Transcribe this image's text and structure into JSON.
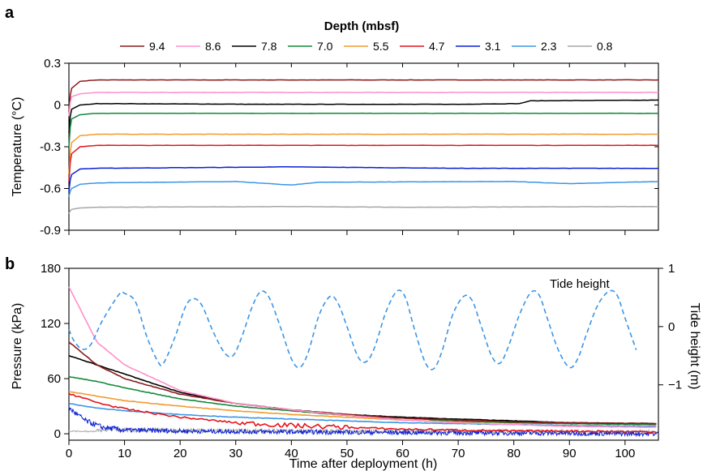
{
  "panels": {
    "a": "a",
    "b": "b"
  },
  "legend": {
    "title": "Depth (mbsf)"
  },
  "colors": {
    "9.4": "#8b1a1a",
    "8.6": "#ff8fc8",
    "7.8": "#000000",
    "7.0": "#13883a",
    "5.5": "#f39a2e",
    "4.7": "#e3141b",
    "3.1": "#0a1fd6",
    "2.3": "#3b95e6",
    "0.8": "#a7a7a7",
    "tide": "#3b95e6"
  },
  "chart_data": [
    {
      "type": "line",
      "panel": "a",
      "title": "",
      "xlabel": "",
      "ylabel": "Temperature (°C)",
      "xlim": [
        0,
        106
      ],
      "ylim": [
        -0.9,
        0.3
      ],
      "y_ticks": [
        "0.3",
        "0",
        "-0.3",
        "-0.6",
        "-0.9"
      ],
      "y_tick_values": [
        0.3,
        0,
        -0.3,
        -0.6,
        -0.9
      ],
      "x_ticks": [
        0,
        10,
        20,
        30,
        40,
        50,
        60,
        70,
        80,
        90,
        100
      ],
      "legend_position": "top",
      "series": [
        {
          "name": "9.4",
          "points": [
            [
              0,
              -0.05
            ],
            [
              0.5,
              0.12
            ],
            [
              2,
              0.17
            ],
            [
              5,
              0.18
            ],
            [
              106,
              0.18
            ]
          ]
        },
        {
          "name": "8.6",
          "points": [
            [
              0,
              -0.08
            ],
            [
              0.5,
              0.06
            ],
            [
              2,
              0.08
            ],
            [
              5,
              0.09
            ],
            [
              106,
              0.09
            ]
          ]
        },
        {
          "name": "7.8",
          "points": [
            [
              0,
              -0.2
            ],
            [
              0.5,
              -0.03
            ],
            [
              2,
              0.0
            ],
            [
              5,
              0.01
            ],
            [
              35,
              0.005
            ],
            [
              70,
              0.005
            ],
            [
              81,
              0.01
            ],
            [
              83,
              0.03
            ],
            [
              106,
              0.035
            ]
          ]
        },
        {
          "name": "7.0",
          "points": [
            [
              0,
              -0.3
            ],
            [
              0.5,
              -0.1
            ],
            [
              2,
              -0.07
            ],
            [
              5,
              -0.06
            ],
            [
              106,
              -0.06
            ]
          ]
        },
        {
          "name": "5.5",
          "points": [
            [
              0,
              -0.5
            ],
            [
              0.5,
              -0.27
            ],
            [
              2,
              -0.22
            ],
            [
              5,
              -0.21
            ],
            [
              106,
              -0.21
            ]
          ]
        },
        {
          "name": "4.7",
          "points": [
            [
              0,
              -0.55
            ],
            [
              0.5,
              -0.35
            ],
            [
              2,
              -0.3
            ],
            [
              5,
              -0.29
            ],
            [
              106,
              -0.29
            ]
          ]
        },
        {
          "name": "3.1",
          "points": [
            [
              0,
              -0.62
            ],
            [
              0.5,
              -0.5
            ],
            [
              2,
              -0.46
            ],
            [
              5,
              -0.455
            ],
            [
              40,
              -0.445
            ],
            [
              70,
              -0.455
            ],
            [
              106,
              -0.455
            ]
          ]
        },
        {
          "name": "2.3",
          "points": [
            [
              0,
              -0.66
            ],
            [
              0.5,
              -0.6
            ],
            [
              2,
              -0.57
            ],
            [
              5,
              -0.56
            ],
            [
              30,
              -0.55
            ],
            [
              40,
              -0.575
            ],
            [
              45,
              -0.555
            ],
            [
              80,
              -0.55
            ],
            [
              90,
              -0.565
            ],
            [
              106,
              -0.55
            ]
          ]
        },
        {
          "name": "0.8",
          "points": [
            [
              0,
              -0.78
            ],
            [
              0.5,
              -0.75
            ],
            [
              2,
              -0.74
            ],
            [
              5,
              -0.735
            ],
            [
              40,
              -0.73
            ],
            [
              60,
              -0.735
            ],
            [
              106,
              -0.73
            ]
          ]
        }
      ]
    },
    {
      "type": "line",
      "panel": "b",
      "title": "",
      "xlabel": "Time after deployment (h)",
      "ylabel": "Pressure (kPa)",
      "y2label": "Tide height (m)",
      "xlim": [
        0,
        106
      ],
      "ylim": [
        -7,
        180
      ],
      "y_ticks": [
        "180",
        "120",
        "60",
        "0"
      ],
      "y_tick_values": [
        180,
        120,
        60,
        0
      ],
      "y2lim": [
        -1.95,
        1.0
      ],
      "y2_ticks": [
        "1",
        "0",
        "−1"
      ],
      "y2_tick_values": [
        1,
        0,
        -1
      ],
      "x_ticks": [
        "0",
        "10",
        "20",
        "30",
        "40",
        "50",
        "60",
        "70",
        "80",
        "90",
        "100"
      ],
      "x_tick_values": [
        0,
        10,
        20,
        30,
        40,
        50,
        60,
        70,
        80,
        90,
        100
      ],
      "annotation": "Tide height",
      "series": [
        {
          "name": "8.6",
          "points": [
            [
              0,
              160
            ],
            [
              5,
              100
            ],
            [
              10,
              75
            ],
            [
              20,
              47
            ],
            [
              30,
              33
            ],
            [
              40,
              26
            ],
            [
              50,
              20
            ],
            [
              60,
              15
            ],
            [
              70,
              12
            ],
            [
              80,
              10
            ],
            [
              90,
              8
            ],
            [
              106,
              7
            ]
          ]
        },
        {
          "name": "9.4",
          "points": [
            [
              0,
              100
            ],
            [
              5,
              75
            ],
            [
              10,
              60
            ],
            [
              20,
              43
            ],
            [
              30,
              33
            ],
            [
              40,
              26
            ],
            [
              50,
              21
            ],
            [
              60,
              17
            ],
            [
              70,
              15
            ],
            [
              80,
              13
            ],
            [
              90,
              12
            ],
            [
              106,
              11
            ]
          ]
        },
        {
          "name": "7.8",
          "points": [
            [
              0,
              85
            ],
            [
              5,
              75
            ],
            [
              10,
              65
            ],
            [
              20,
              45
            ],
            [
              30,
              33
            ],
            [
              40,
              26
            ],
            [
              50,
              21
            ],
            [
              60,
              18
            ],
            [
              70,
              16
            ],
            [
              80,
              14
            ],
            [
              90,
              12
            ],
            [
              106,
              11
            ]
          ]
        },
        {
          "name": "7.0",
          "points": [
            [
              0,
              62
            ],
            [
              5,
              57
            ],
            [
              10,
              50
            ],
            [
              20,
              38
            ],
            [
              30,
              30
            ],
            [
              40,
              25
            ],
            [
              50,
              20
            ],
            [
              60,
              17
            ],
            [
              70,
              14
            ],
            [
              80,
              12
            ],
            [
              90,
              11
            ],
            [
              106,
              10
            ]
          ]
        },
        {
          "name": "5.5",
          "points": [
            [
              0,
              46
            ],
            [
              5,
              41
            ],
            [
              10,
              36
            ],
            [
              20,
              30
            ],
            [
              30,
              25
            ],
            [
              40,
              21
            ],
            [
              50,
              18
            ],
            [
              60,
              15
            ],
            [
              70,
              13
            ],
            [
              80,
              12
            ],
            [
              90,
              11
            ],
            [
              106,
              10
            ]
          ]
        },
        {
          "name": "4.7",
          "points": [
            [
              0,
              44
            ],
            [
              5,
              34
            ],
            [
              10,
              27
            ],
            [
              20,
              18
            ],
            [
              30,
              12
            ],
            [
              40,
              9
            ],
            [
              50,
              7
            ],
            [
              60,
              5
            ],
            [
              70,
              4
            ],
            [
              80,
              3
            ],
            [
              90,
              3
            ],
            [
              106,
              2
            ]
          ]
        },
        {
          "name": "2.3",
          "points": [
            [
              0,
              33
            ],
            [
              5,
              28
            ],
            [
              10,
              25
            ],
            [
              20,
              21
            ],
            [
              30,
              18
            ],
            [
              40,
              16
            ],
            [
              50,
              14
            ],
            [
              60,
              12
            ],
            [
              70,
              11
            ],
            [
              80,
              10
            ],
            [
              90,
              9
            ],
            [
              106,
              8
            ]
          ]
        },
        {
          "name": "3.1",
          "points": [
            [
              0,
              28
            ],
            [
              3,
              14
            ],
            [
              6,
              7
            ],
            [
              10,
              4
            ],
            [
              20,
              3
            ],
            [
              40,
              2
            ],
            [
              70,
              1
            ],
            [
              106,
              0
            ]
          ]
        },
        {
          "name": "0.8",
          "points": [
            [
              0,
              3
            ],
            [
              20,
              2
            ],
            [
              40,
              1
            ],
            [
              70,
              1
            ],
            [
              106,
              0
            ]
          ]
        },
        {
          "name": "Tide height",
          "axis": "right",
          "style": "dashed",
          "points": [
            [
              0,
              -0.05
            ],
            [
              1,
              -0.26
            ],
            [
              2.5,
              -0.39
            ],
            [
              4,
              -0.3
            ],
            [
              6,
              0.1
            ],
            [
              9,
              0.55
            ],
            [
              10,
              0.57
            ],
            [
              12,
              0.42
            ],
            [
              14,
              -0.17
            ],
            [
              16,
              -0.6
            ],
            [
              17,
              -0.63
            ],
            [
              19,
              -0.2
            ],
            [
              21,
              0.35
            ],
            [
              22.5,
              0.48
            ],
            [
              24,
              0.35
            ],
            [
              26,
              -0.1
            ],
            [
              28,
              -0.45
            ],
            [
              29.5,
              -0.5
            ],
            [
              31,
              -0.2
            ],
            [
              33,
              0.35
            ],
            [
              34.5,
              0.6
            ],
            [
              36,
              0.5
            ],
            [
              38,
              0.0
            ],
            [
              40,
              -0.55
            ],
            [
              41.5,
              -0.7
            ],
            [
              43,
              -0.45
            ],
            [
              45,
              0.2
            ],
            [
              47,
              0.52
            ],
            [
              48.5,
              0.38
            ],
            [
              50,
              0.0
            ],
            [
              52,
              -0.52
            ],
            [
              53.5,
              -0.6
            ],
            [
              55,
              -0.35
            ],
            [
              57,
              0.25
            ],
            [
              59,
              0.61
            ],
            [
              60.5,
              0.5
            ],
            [
              62,
              0.0
            ],
            [
              64,
              -0.6
            ],
            [
              65.5,
              -0.73
            ],
            [
              67,
              -0.45
            ],
            [
              69,
              0.2
            ],
            [
              71,
              0.52
            ],
            [
              72.5,
              0.45
            ],
            [
              74,
              0.05
            ],
            [
              76,
              -0.5
            ],
            [
              77.5,
              -0.63
            ],
            [
              79,
              -0.35
            ],
            [
              81,
              0.2
            ],
            [
              83,
              0.58
            ],
            [
              84.5,
              0.55
            ],
            [
              86,
              0.15
            ],
            [
              88,
              -0.4
            ],
            [
              90,
              -0.7
            ],
            [
              91.5,
              -0.55
            ],
            [
              93,
              -0.15
            ],
            [
              95,
              0.35
            ],
            [
              97,
              0.6
            ],
            [
              98.5,
              0.55
            ],
            [
              100,
              0.15
            ],
            [
              102,
              -0.4
            ]
          ]
        }
      ]
    }
  ]
}
